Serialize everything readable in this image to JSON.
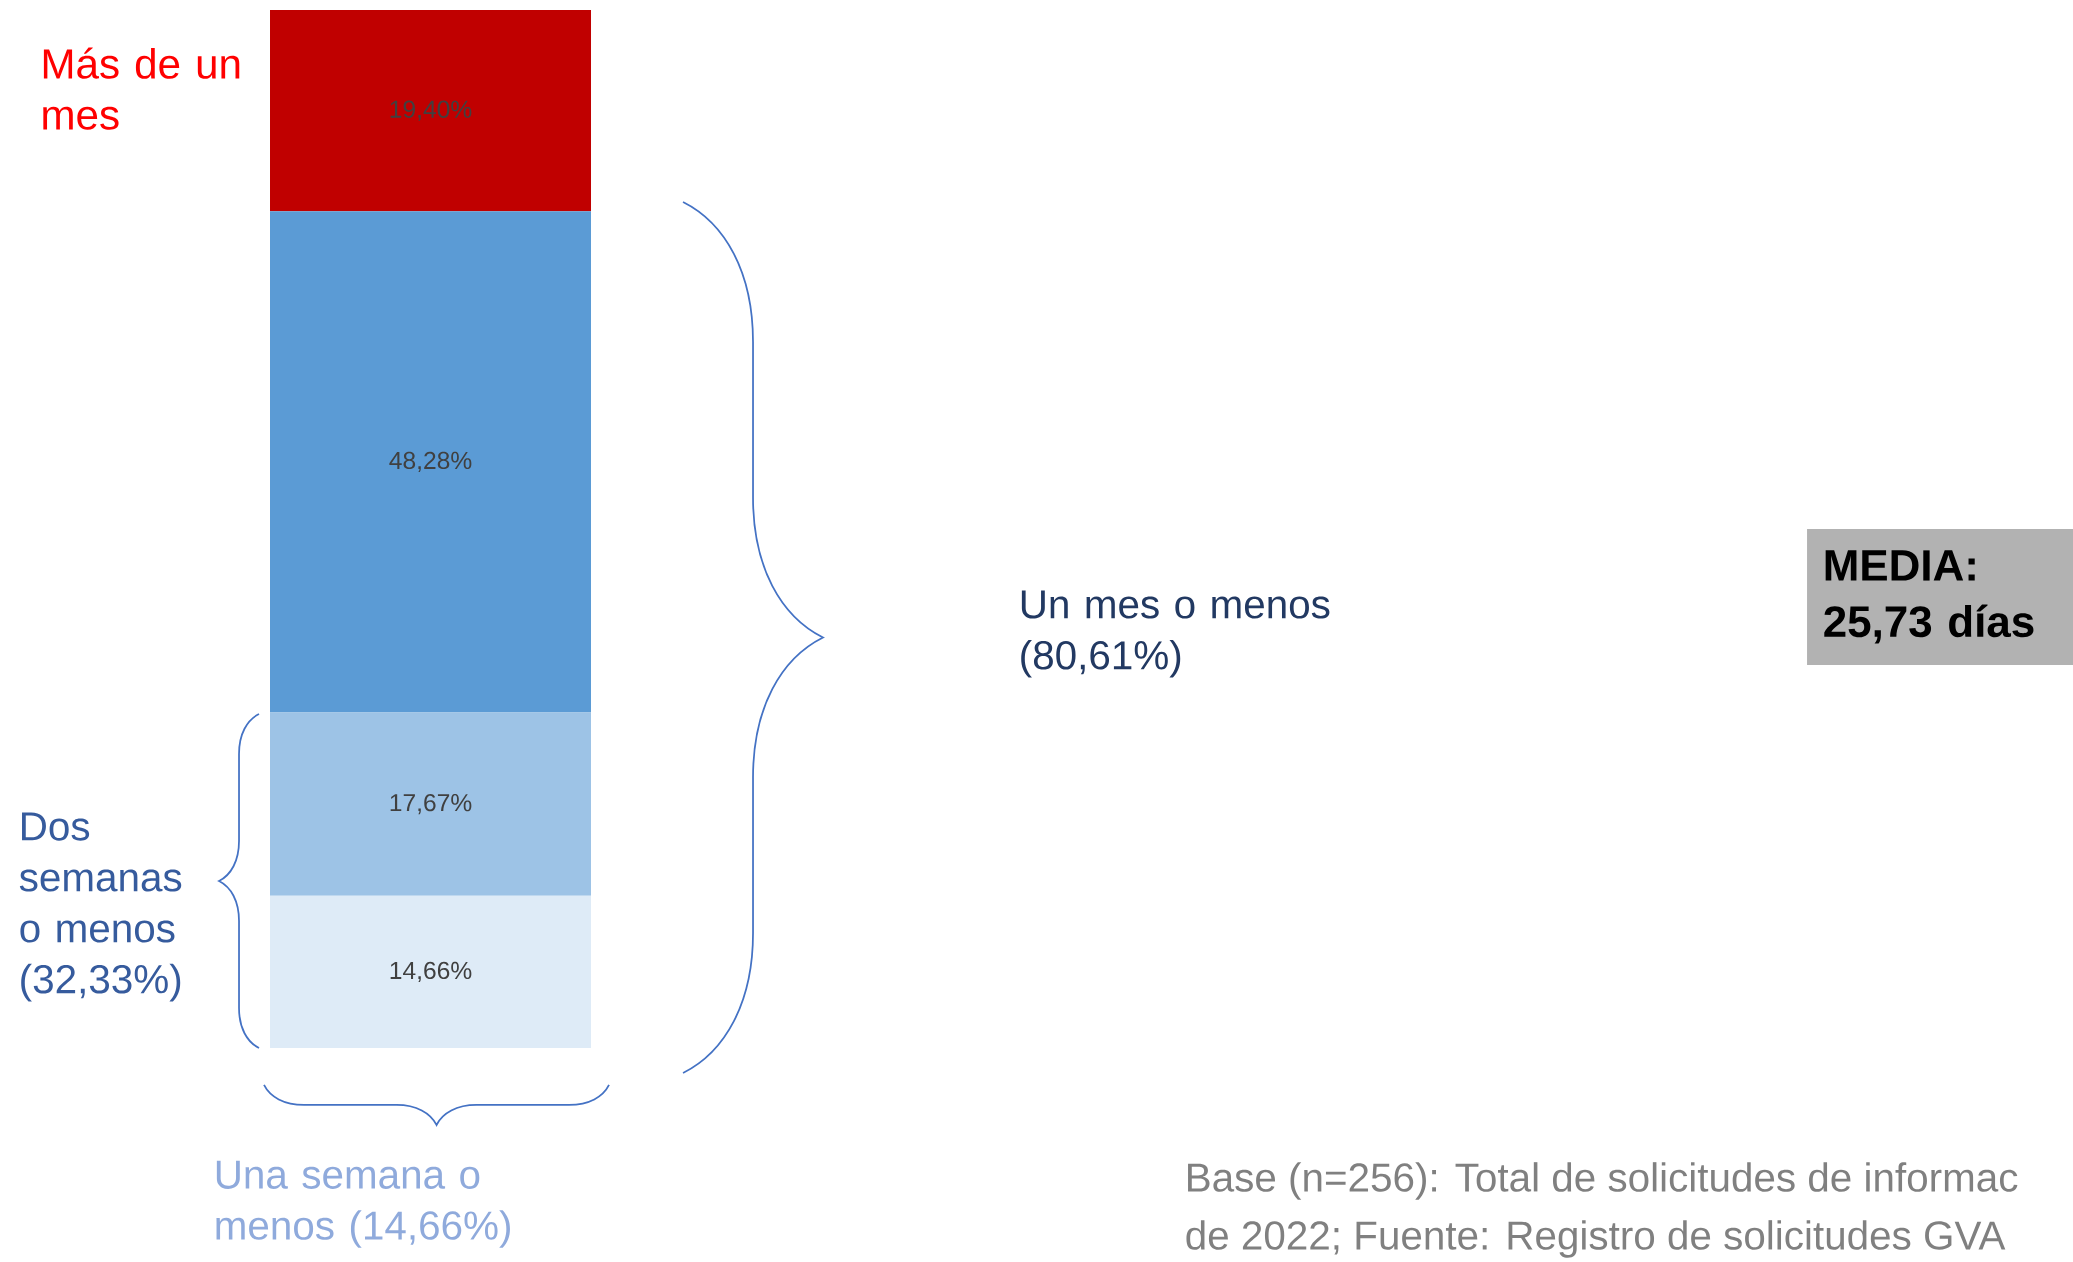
{
  "chart_data": {
    "type": "bar",
    "stacked": true,
    "categories": [
      null
    ],
    "series": [
      {
        "color": "#deebf7",
        "values": [
          14.66
        ],
        "value_labels": [
          "14,66%"
        ]
      },
      {
        "color": "#9dc3e6",
        "values": [
          17.67
        ],
        "value_labels": [
          "17,67%"
        ]
      },
      {
        "color": "#5b9bd5",
        "values": [
          48.28
        ],
        "value_labels": [
          "48,28%"
        ]
      },
      {
        "name": "Más de un mes",
        "color": "#c00000",
        "values": [
          19.4
        ],
        "value_labels": [
          "19,40%"
        ]
      }
    ],
    "annotations": [
      "Dos semanas o menos (32,33%)",
      "Una semana o menos (14,66%)",
      "Un mes o menos (80,61%)",
      "MEDIA: 25,73 días",
      "Base (n=256): Total de solicitudes de informac",
      "de 2022; Fuente: Registro de solicitudes GVA"
    ]
  }
}
